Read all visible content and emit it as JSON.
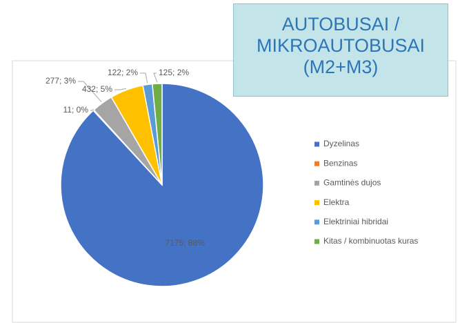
{
  "chart_data": {
    "type": "pie",
    "title": "AUTOBUSAI / MIKROAUTOBUSAI (M2+M3)",
    "categories": [
      "Dyzelinas",
      "Benzinas",
      "Gamtinės dujos",
      "Elektra",
      "Elektriniai hibridai",
      "Kitas / kombinuotas kuras"
    ],
    "values": [
      7175,
      11,
      277,
      432,
      122,
      125
    ],
    "value_labels": [
      "7175; 88%",
      "11; 0%",
      "277; 3%",
      "432; 5%",
      "122; 2%",
      "125; 2%"
    ],
    "colors": [
      "#4472c4",
      "#ed7d31",
      "#a5a5a5",
      "#ffc000",
      "#5b9bd5",
      "#70ad47"
    ],
    "legend": "right"
  }
}
